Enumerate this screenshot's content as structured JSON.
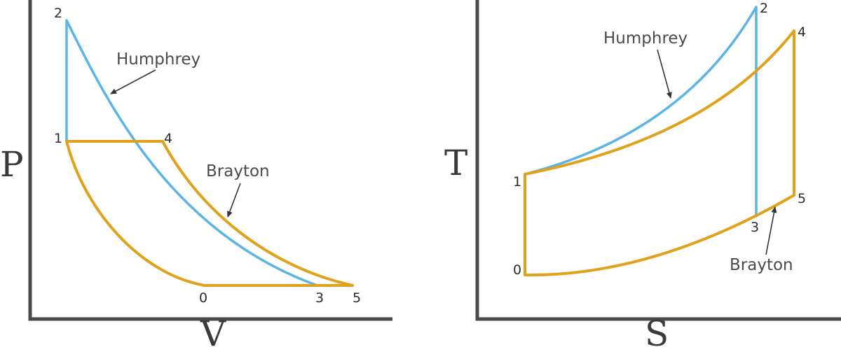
{
  "colors": {
    "humphrey": "#5ab4e5",
    "brayton": "#e0a11b",
    "axis": "#4a4a4a"
  },
  "pv": {
    "ylabel": "P",
    "xlabel": "V",
    "points": {
      "p1": "1",
      "p2": "2",
      "p3": "3",
      "p4": "4",
      "p0": "0",
      "p5": "5"
    },
    "labels": {
      "humphrey": "Humphrey",
      "brayton": "Brayton"
    }
  },
  "ts": {
    "ylabel": "T",
    "xlabel": "S",
    "points": {
      "p1": "1",
      "p2": "2",
      "p3": "3",
      "p4": "4",
      "p0": "0",
      "p5": "5"
    },
    "labels": {
      "humphrey": "Humphrey",
      "brayton": "Brayton"
    }
  }
}
